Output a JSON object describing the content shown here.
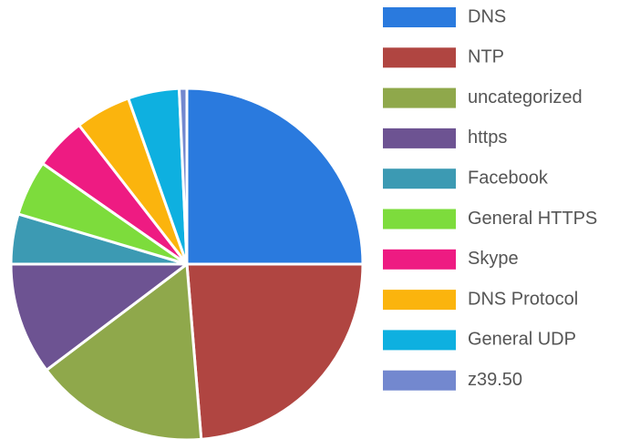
{
  "chart_data": {
    "type": "pie",
    "categories": [
      "DNS",
      "NTP",
      "uncategorized",
      "https",
      "Facebook",
      "General HTTPS",
      "Skype",
      "DNS Protocol",
      "General UDP",
      "z39.50"
    ],
    "values": [
      25,
      23.7,
      16,
      10.3,
      4.6,
      5.1,
      4.8,
      5.1,
      4.7,
      0.7
    ],
    "colors": [
      "#2a7ade",
      "#b04541",
      "#8fa84b",
      "#6d5392",
      "#3c9ab3",
      "#7ddc3c",
      "#ee1b82",
      "#fbb40d",
      "#0eb0e0",
      "#7388cf"
    ],
    "legend": "right"
  }
}
